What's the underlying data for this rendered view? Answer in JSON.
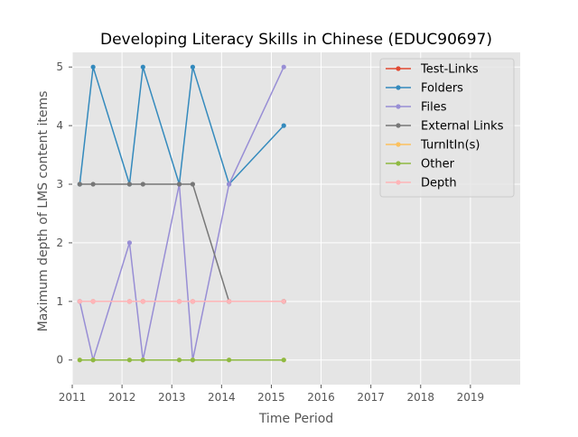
{
  "chart_data": {
    "type": "line",
    "title": "Developing Literacy Skills in Chinese (EDUC90697)",
    "xlabel": "Time Period",
    "ylabel": "Maximum depth of LMS content items",
    "xlim": [
      2011.0,
      2020.0
    ],
    "ylim": [
      -0.42,
      5.25
    ],
    "x_ticks": [
      2011,
      2012,
      2013,
      2014,
      2015,
      2016,
      2017,
      2018,
      2019
    ],
    "y_ticks": [
      0,
      1,
      2,
      3,
      4,
      5
    ],
    "grid": true,
    "legend_position": "top-right",
    "x": [
      2011.15,
      2011.42,
      2012.15,
      2012.42,
      2013.15,
      2013.42,
      2014.15,
      2015.25
    ],
    "series": [
      {
        "name": "Test-Links",
        "color": "#e24a33",
        "values": [
          1,
          1,
          1,
          1,
          1,
          1,
          1,
          1
        ]
      },
      {
        "name": "Folders",
        "color": "#348abd",
        "values": [
          3,
          5,
          3,
          5,
          3,
          5,
          3,
          4
        ]
      },
      {
        "name": "Files",
        "color": "#988ed5",
        "values": [
          1,
          0,
          2,
          0,
          3,
          0,
          3,
          5
        ]
      },
      {
        "name": "External Links",
        "color": "#777777",
        "values": [
          3,
          3,
          3,
          3,
          3,
          3,
          1,
          1
        ]
      },
      {
        "name": "TurnItIn(s)",
        "color": "#fbc15e",
        "values": [
          0,
          0,
          0,
          0,
          0,
          0,
          0,
          0
        ]
      },
      {
        "name": "Other",
        "color": "#8eba42",
        "values": [
          0,
          0,
          0,
          0,
          0,
          0,
          0,
          0
        ]
      },
      {
        "name": "Depth",
        "color": "#ffb5b8",
        "values": [
          1,
          1,
          1,
          1,
          1,
          1,
          1,
          1
        ]
      }
    ]
  }
}
